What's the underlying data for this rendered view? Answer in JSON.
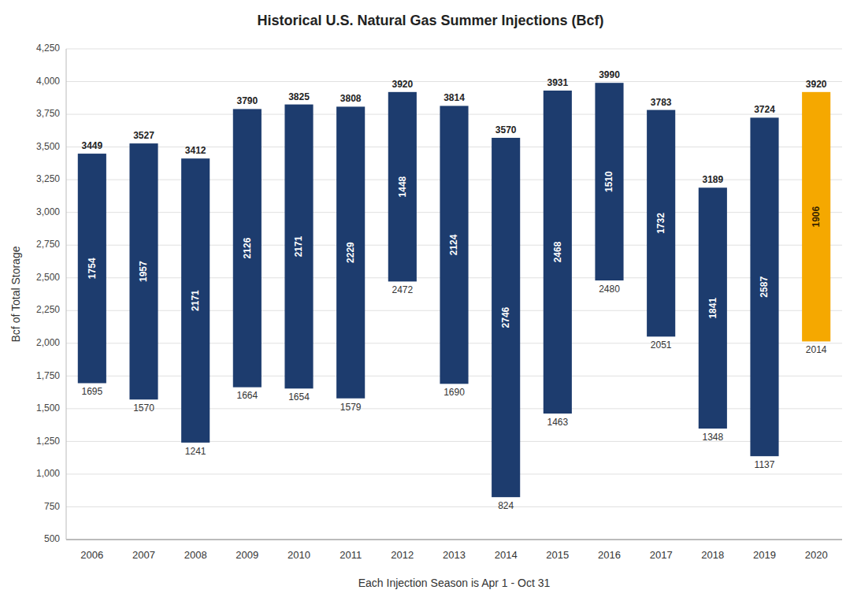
{
  "chart_data": {
    "type": "bar",
    "title": "Historical U.S. Natural Gas Summer Injections (Bcf)",
    "xlabel": "Each Injection Season is Apr 1 - Oct 31",
    "ylabel": "Bcf of Total Storage",
    "categories": [
      "2006",
      "2007",
      "2008",
      "2009",
      "2010",
      "2011",
      "2012",
      "2013",
      "2014",
      "2015",
      "2016",
      "2017",
      "2018",
      "2019",
      "2020"
    ],
    "bottom": [
      1695,
      1570,
      1241,
      1664,
      1654,
      1579,
      2472,
      1690,
      824,
      1463,
      2480,
      2051,
      1348,
      1137,
      2014
    ],
    "values": [
      1754,
      1957,
      2171,
      2126,
      2171,
      2229,
      1448,
      2124,
      2746,
      2468,
      1510,
      1732,
      1841,
      2587,
      1906
    ],
    "top": [
      3449,
      3527,
      3412,
      3790,
      3825,
      3808,
      3920,
      3814,
      3570,
      3931,
      3990,
      3783,
      3189,
      3724,
      3920
    ],
    "colors": [
      "#1D3C6E",
      "#1D3C6E",
      "#1D3C6E",
      "#1D3C6E",
      "#1D3C6E",
      "#1D3C6E",
      "#1D3C6E",
      "#1D3C6E",
      "#1D3C6E",
      "#1D3C6E",
      "#1D3C6E",
      "#1D3C6E",
      "#1D3C6E",
      "#1D3C6E",
      "#F5A800"
    ],
    "ylim": [
      500,
      4250
    ],
    "yticks": [
      500,
      750,
      {
        "value": 1000,
        "label": "1,000"
      },
      {
        "value": 1250,
        "label": "1,250"
      },
      {
        "value": 1500,
        "label": "1,500"
      },
      {
        "value": 1750,
        "label": "1,750"
      },
      {
        "value": 2000,
        "label": "2,000"
      },
      {
        "value": 2250,
        "label": "2,250"
      },
      {
        "value": 2500,
        "label": "2,500"
      },
      {
        "value": 2750,
        "label": "2,750"
      },
      {
        "value": 3000,
        "label": "3,000"
      },
      {
        "value": 3250,
        "label": "3,250"
      },
      {
        "value": 3500,
        "label": "3,500"
      },
      {
        "value": 3750,
        "label": "3,750"
      },
      {
        "value": 4000,
        "label": "4,000"
      },
      {
        "value": 4250,
        "label": "4,250"
      }
    ],
    "grid": true,
    "data_labels": true
  }
}
